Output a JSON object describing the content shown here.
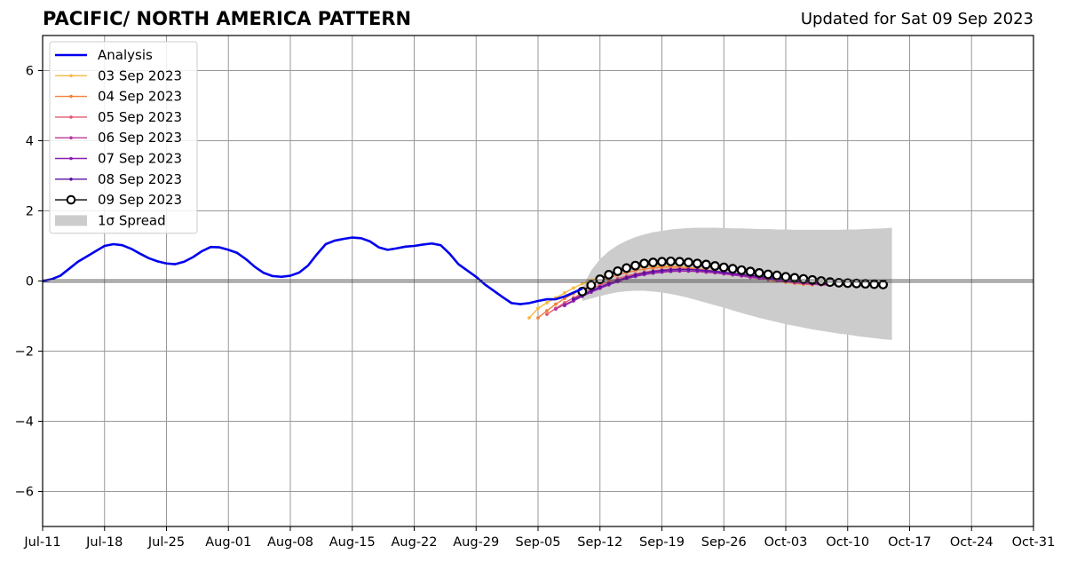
{
  "chart_data": {
    "type": "line",
    "title": "PACIFIC/ NORTH AMERICA PATTERN",
    "subtitle": "Updated for Sat 09 Sep 2023",
    "xlabel": "",
    "ylabel": "",
    "x_start": "2023-07-11",
    "x_end": "2023-10-31",
    "x_ticks": [
      "Jul-11",
      "Jul-18",
      "Jul-25",
      "Aug-01",
      "Aug-08",
      "Aug-15",
      "Aug-22",
      "Aug-29",
      "Sep-05",
      "Sep-12",
      "Sep-19",
      "Sep-26",
      "Oct-03",
      "Oct-10",
      "Oct-17",
      "Oct-24",
      "Oct-31"
    ],
    "ylim": [
      -7,
      7
    ],
    "y_ticks": [
      6,
      4,
      2,
      0,
      -2,
      -4,
      -6
    ],
    "y_tick_labels": [
      "6",
      "4",
      "2",
      "0",
      "−2",
      "−4",
      "−6"
    ],
    "grid": true,
    "legend_position": "top-left",
    "zero_line": 0,
    "analysis": {
      "name": "Analysis",
      "color": "#0000ee",
      "start_date": "2023-07-11",
      "values": [
        0.0,
        0.05,
        0.15,
        0.35,
        0.55,
        0.7,
        0.85,
        1.0,
        1.05,
        1.02,
        0.92,
        0.78,
        0.65,
        0.56,
        0.5,
        0.48,
        0.55,
        0.68,
        0.85,
        0.97,
        0.96,
        0.89,
        0.8,
        0.62,
        0.4,
        0.23,
        0.14,
        0.12,
        0.15,
        0.24,
        0.44,
        0.76,
        1.05,
        1.15,
        1.2,
        1.24,
        1.22,
        1.13,
        0.96,
        0.89,
        0.93,
        0.98,
        1.0,
        1.04,
        1.07,
        1.02,
        0.78,
        0.48,
        0.3,
        0.12,
        -0.1,
        -0.28,
        -0.46,
        -0.63,
        -0.66,
        -0.63,
        -0.57,
        -0.52,
        -0.52,
        -0.44,
        -0.33,
        -0.22
      ]
    },
    "series": [
      {
        "name": "03 Sep 2023",
        "color": "#f5b942",
        "start_date": "2023-09-04",
        "values": [
          -1.05,
          -0.78,
          -0.62,
          -0.48,
          -0.34,
          -0.2,
          -0.08,
          0.02,
          0.12,
          0.2,
          0.27,
          0.32,
          0.37,
          0.4,
          0.42,
          0.43,
          0.42,
          0.4,
          0.38,
          0.35,
          0.31,
          0.27,
          0.23,
          0.19,
          0.15,
          0.11,
          0.07,
          0.03,
          -0.01,
          -0.04,
          -0.07,
          -0.1
        ]
      },
      {
        "name": "04 Sep 2023",
        "color": "#f0803c",
        "start_date": "2023-09-05",
        "values": [
          -1.05,
          -0.85,
          -0.66,
          -0.5,
          -0.36,
          -0.23,
          -0.11,
          0.0,
          0.09,
          0.17,
          0.24,
          0.3,
          0.34,
          0.37,
          0.39,
          0.4,
          0.39,
          0.37,
          0.35,
          0.32,
          0.28,
          0.24,
          0.2,
          0.16,
          0.12,
          0.08,
          0.04,
          0.0,
          -0.03,
          -0.06,
          -0.09,
          -0.11
        ]
      },
      {
        "name": "05 Sep 2023",
        "color": "#e0596e",
        "start_date": "2023-09-06",
        "values": [
          -0.95,
          -0.78,
          -0.62,
          -0.48,
          -0.35,
          -0.23,
          -0.12,
          -0.02,
          0.07,
          0.14,
          0.2,
          0.25,
          0.29,
          0.32,
          0.34,
          0.35,
          0.34,
          0.32,
          0.3,
          0.27,
          0.24,
          0.21,
          0.17,
          0.13,
          0.09,
          0.06,
          0.03,
          -0.01,
          -0.04,
          -0.07,
          -0.09,
          -0.11
        ]
      },
      {
        "name": "06 Sep 2023",
        "color": "#b8379b",
        "start_date": "2023-09-07",
        "values": [
          -0.8,
          -0.67,
          -0.55,
          -0.42,
          -0.3,
          -0.19,
          -0.09,
          0.0,
          0.07,
          0.13,
          0.18,
          0.22,
          0.25,
          0.27,
          0.28,
          0.28,
          0.27,
          0.25,
          0.23,
          0.2,
          0.17,
          0.14,
          0.1,
          0.07,
          0.04,
          0.01,
          -0.02,
          -0.05,
          -0.07,
          -0.09,
          -0.11,
          -0.12
        ]
      },
      {
        "name": "07 Sep 2023",
        "color": "#8b1fb0",
        "start_date": "2023-09-08",
        "values": [
          -0.7,
          -0.57,
          -0.44,
          -0.32,
          -0.21,
          -0.11,
          -0.02,
          0.06,
          0.13,
          0.19,
          0.23,
          0.26,
          0.28,
          0.29,
          0.29,
          0.28,
          0.27,
          0.25,
          0.22,
          0.19,
          0.16,
          0.13,
          0.1,
          0.07,
          0.04,
          0.01,
          -0.02,
          -0.04,
          -0.06,
          -0.08,
          -0.1,
          -0.11
        ]
      },
      {
        "name": "08 Sep 2023",
        "color": "#5a10a0",
        "start_date": "2023-09-09",
        "values": [
          -0.52,
          -0.4,
          -0.28,
          -0.17,
          -0.07,
          0.02,
          0.1,
          0.17,
          0.23,
          0.27,
          0.3,
          0.32,
          0.33,
          0.33,
          0.32,
          0.3,
          0.28,
          0.25,
          0.22,
          0.19,
          0.16,
          0.13,
          0.1,
          0.07,
          0.04,
          0.02,
          -0.01,
          -0.03,
          -0.05,
          -0.07,
          -0.08,
          -0.1
        ]
      },
      {
        "name": "09 Sep 2023",
        "color": "#000000",
        "start_date": "2023-09-10",
        "values": [
          -0.3,
          -0.12,
          0.05,
          0.18,
          0.28,
          0.37,
          0.44,
          0.5,
          0.53,
          0.55,
          0.56,
          0.55,
          0.53,
          0.5,
          0.47,
          0.43,
          0.39,
          0.35,
          0.31,
          0.27,
          0.23,
          0.19,
          0.16,
          0.12,
          0.09,
          0.06,
          0.03,
          0.0,
          -0.03,
          -0.05,
          -0.06,
          -0.07,
          -0.08,
          -0.09,
          -0.1
        ]
      }
    ],
    "spread": {
      "name": "1σ Spread",
      "color": "#cccccc",
      "start_date": "2023-09-10",
      "upper": [
        -0.2,
        0.3,
        0.62,
        0.85,
        1.02,
        1.15,
        1.25,
        1.33,
        1.39,
        1.43,
        1.47,
        1.49,
        1.51,
        1.52,
        1.52,
        1.52,
        1.51,
        1.5,
        1.5,
        1.49,
        1.48,
        1.48,
        1.47,
        1.47,
        1.46,
        1.46,
        1.46,
        1.46,
        1.46,
        1.46,
        1.47,
        1.47,
        1.48,
        1.49,
        1.5,
        1.52
      ],
      "lower": [
        -0.57,
        -0.5,
        -0.43,
        -0.37,
        -0.32,
        -0.29,
        -0.28,
        -0.28,
        -0.3,
        -0.33,
        -0.37,
        -0.42,
        -0.48,
        -0.55,
        -0.62,
        -0.69,
        -0.76,
        -0.84,
        -0.91,
        -0.98,
        -1.05,
        -1.11,
        -1.17,
        -1.23,
        -1.28,
        -1.33,
        -1.38,
        -1.42,
        -1.46,
        -1.5,
        -1.53,
        -1.57,
        -1.6,
        -1.63,
        -1.66,
        -1.68
      ]
    }
  }
}
